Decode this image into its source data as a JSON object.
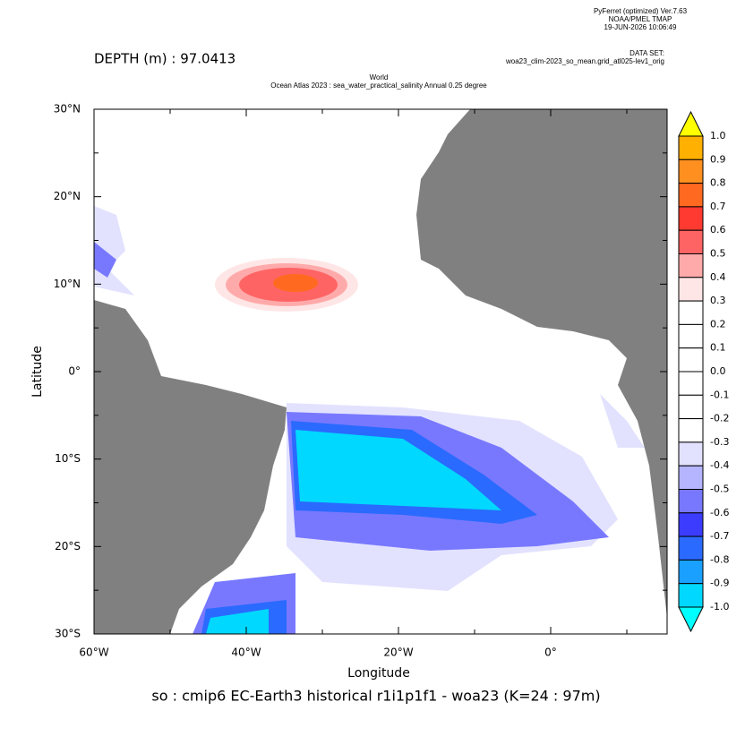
{
  "header": {
    "software": "PyFerret (optimized) Ver.7.63",
    "lab": "NOAA/PMEL TMAP",
    "timestamp": "19-JUN-2026 10:06:49",
    "dataset_label": "DATA SET:",
    "dataset": "woa23_clim-2023_so_mean.grid_atl025-lev1_orig"
  },
  "depth": "DEPTH (m) : 97.0413",
  "title": {
    "line1": "World",
    "line2": "Ocean Atlas 2023 : sea_water_practical_salinity Annual  0.25 degree"
  },
  "axes": {
    "x_label": "Longitude",
    "y_label": "Latitude",
    "x_ticks": [
      "60°W",
      "40°W",
      "20°W",
      "0°"
    ],
    "y_ticks": [
      "30°N",
      "20°N",
      "10°N",
      "0°",
      "10°S",
      "20°S",
      "30°S"
    ]
  },
  "colorbar": {
    "labels": [
      "1.0",
      "0.9",
      "0.8",
      "0.7",
      "0.6",
      "0.5",
      "0.4",
      "0.3",
      "0.2",
      "0.1",
      "0.0",
      "-0.1",
      "-0.2",
      "-0.3",
      "-0.4",
      "-0.5",
      "-0.6",
      "-0.7",
      "-0.8",
      "-0.9",
      "-1.0"
    ],
    "colors": [
      "#ffff00",
      "#ffb000",
      "#ff9020",
      "#ff6a20",
      "#ff3a30",
      "#ff6464",
      "#ffaaaa",
      "#ffe6e6",
      "#ffffff",
      "#ffffff",
      "#ffffff",
      "#ffffff",
      "#ffffff",
      "#ffffff",
      "#e2e2ff",
      "#b4b4ff",
      "#7878ff",
      "#3c3cff",
      "#2a6aff",
      "#1aa0ff",
      "#00d8ff",
      "#00ffff"
    ],
    "land_color": "#808080"
  },
  "caption": "so : cmip6 EC-Earth3 historical r1i1p1f1 - woa23  (K=24 : 97m)"
}
